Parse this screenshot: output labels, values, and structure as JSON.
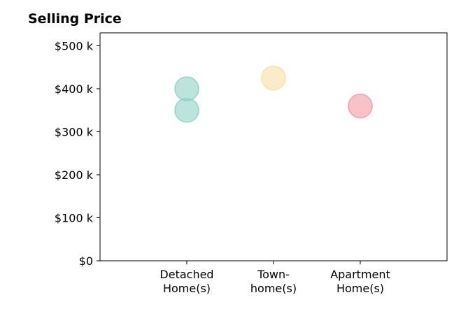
{
  "chart_data": {
    "type": "scatter",
    "title": "Selling Price",
    "xlabel": "",
    "ylabel": "",
    "categories": [
      [
        "Detached",
        "Home(s)"
      ],
      [
        "Town-",
        "home(s)"
      ],
      [
        "Apartment",
        "Home(s)"
      ]
    ],
    "y_ticks": [
      {
        "value": 0,
        "label": "$0"
      },
      {
        "value": 100000,
        "label": "$100 k"
      },
      {
        "value": 200000,
        "label": "$200 k"
      },
      {
        "value": 300000,
        "label": "$300 k"
      },
      {
        "value": 400000,
        "label": "$400 k"
      },
      {
        "value": 500000,
        "label": "$500 k"
      }
    ],
    "ylim": [
      0,
      530000
    ],
    "xlim": [
      -1,
      3
    ],
    "grid": false,
    "points": [
      {
        "category": 0,
        "y": 400000,
        "color": "#8fd1c5"
      },
      {
        "category": 0,
        "y": 350000,
        "color": "#8fd1c5"
      },
      {
        "category": 1,
        "y": 425000,
        "color": "#f6dfa8"
      },
      {
        "category": 2,
        "y": 360000,
        "color": "#f59aa4"
      }
    ],
    "marker_opacity": 0.6
  }
}
